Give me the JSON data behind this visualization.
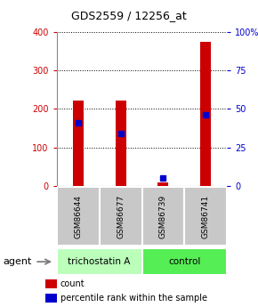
{
  "title": "GDS2559 / 12256_at",
  "samples": [
    "GSM86644",
    "GSM86677",
    "GSM86739",
    "GSM86741"
  ],
  "bar_values": [
    222,
    222,
    8,
    375
  ],
  "percentile_values": [
    41,
    34,
    5,
    46
  ],
  "bar_color": "#cc0000",
  "percentile_color": "#0000cc",
  "ylim_left": [
    0,
    400
  ],
  "ylim_right": [
    0,
    100
  ],
  "yticks_left": [
    0,
    100,
    200,
    300,
    400
  ],
  "yticks_right": [
    0,
    25,
    50,
    75,
    100
  ],
  "yticklabels_right": [
    "0",
    "25",
    "50",
    "75",
    "100%"
  ],
  "groups": [
    {
      "label": "trichostatin A",
      "indices": [
        0,
        1
      ],
      "color": "#bbffbb"
    },
    {
      "label": "control",
      "indices": [
        2,
        3
      ],
      "color": "#55ee55"
    }
  ],
  "agent_label": "agent",
  "legend_count_label": "count",
  "legend_percentile_label": "percentile rank within the sample",
  "tick_label_color_left": "#cc0000",
  "tick_label_color_right": "#0000cc",
  "bar_width": 0.25,
  "sample_box_color": "#c8c8c8",
  "grid_color": "#000000"
}
